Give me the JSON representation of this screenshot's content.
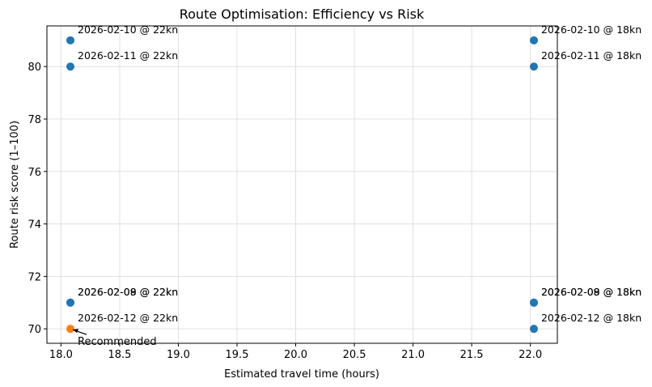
{
  "chart_data": {
    "type": "scatter",
    "title": "Route Optimisation: Efficiency vs Risk",
    "x_label": "Estimated travel time (hours)",
    "y_label": "Route risk score (1–100)",
    "x": [
      18.08,
      18.08,
      18.08,
      18.08,
      18.08,
      22.03,
      22.03,
      22.03,
      22.03,
      22.03
    ],
    "values": [
      71,
      71,
      81,
      80,
      70,
      71,
      71,
      81,
      80,
      70
    ],
    "point_labels": [
      "2026-02-08 @ 22kn",
      "2026-02-09 @ 22kn",
      "2026-02-10 @ 22kn",
      "2026-02-11 @ 22kn",
      "2026-02-12 @ 22kn",
      "2026-02-08 @ 18kn",
      "2026-02-09 @ 18kn",
      "2026-02-10 @ 18kn",
      "2026-02-11 @ 18kn",
      "2026-02-12 @ 18kn"
    ],
    "colors": [
      "#1f77b4",
      "#1f77b4",
      "#1f77b4",
      "#1f77b4",
      "#ff7f0e",
      "#1f77b4",
      "#1f77b4",
      "#1f77b4",
      "#1f77b4",
      "#1f77b4"
    ],
    "annotation": {
      "text": "Recommended",
      "x": 18.08,
      "y": 70
    },
    "xlim": [
      17.88,
      22.23
    ],
    "ylim": [
      69.45,
      81.55
    ],
    "xticks": [
      {
        "value": 18,
        "label": "18.0"
      },
      18.5,
      {
        "value": 19,
        "label": "19.0"
      },
      19.5,
      {
        "value": 20,
        "label": "20.0"
      },
      20.5,
      {
        "value": 21,
        "label": "21.0"
      },
      21.5,
      {
        "value": 22,
        "label": "22.0"
      }
    ],
    "yticks": [
      70,
      72,
      74,
      76,
      78,
      80
    ],
    "grid": true
  }
}
